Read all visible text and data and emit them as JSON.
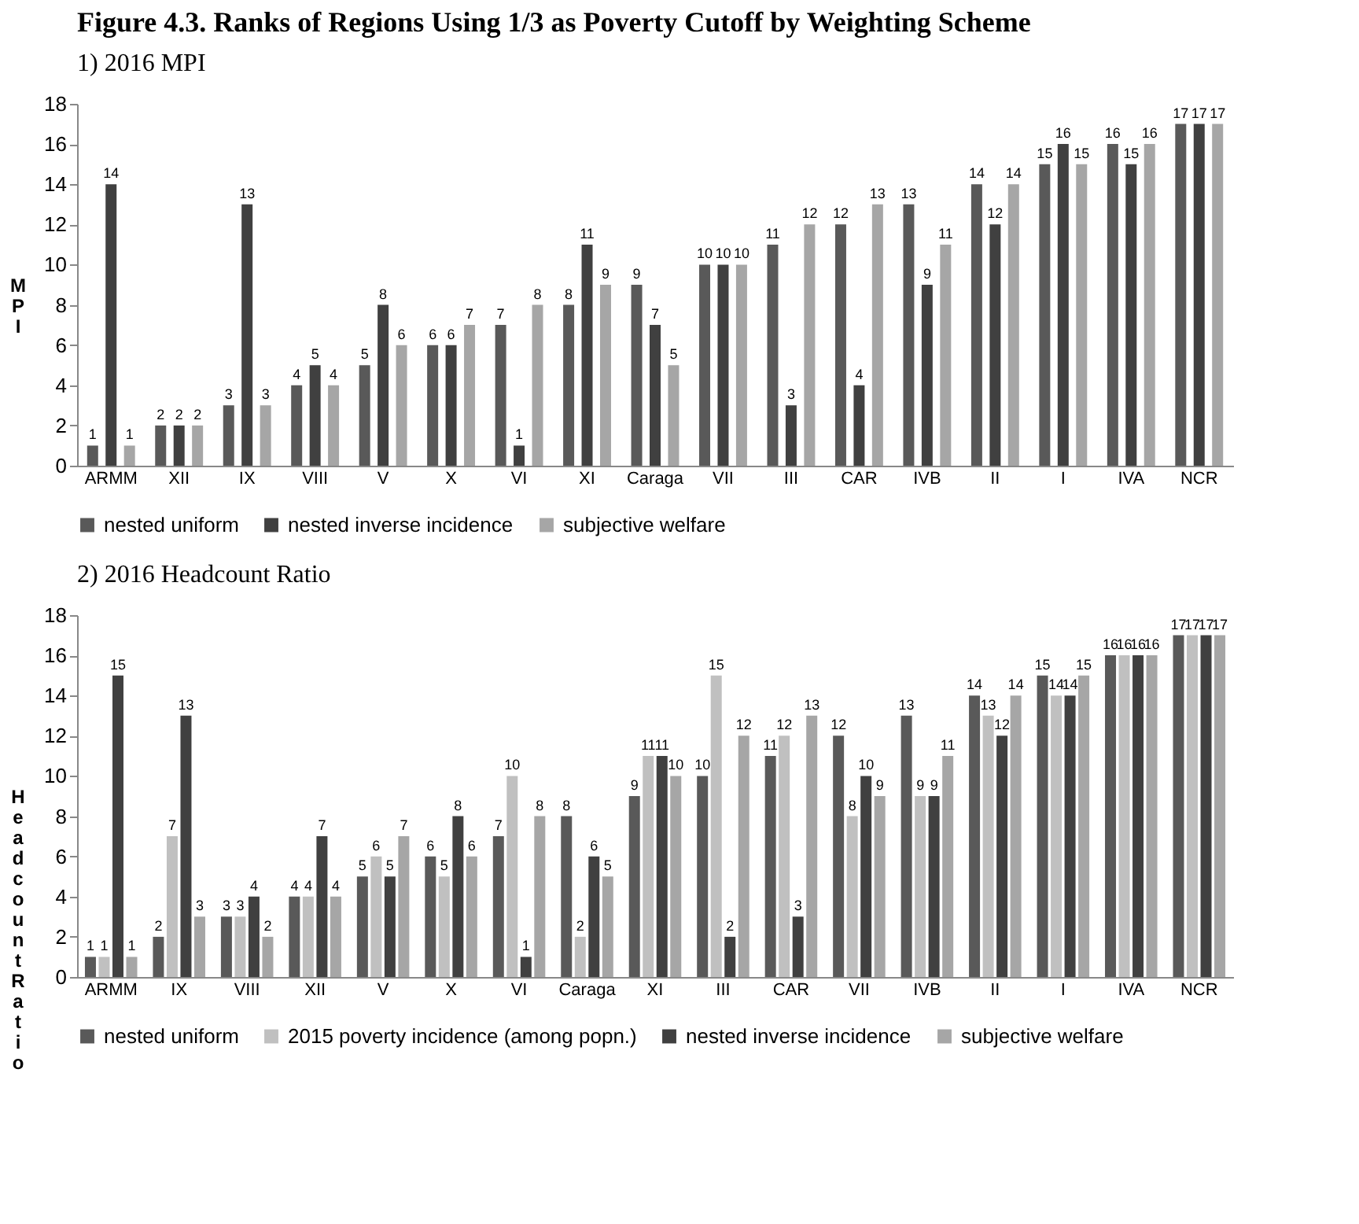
{
  "chart_data": [
    {
      "type": "bar",
      "title": "Figure 4.3.  Ranks of Regions Using 1/3 as Poverty Cutoff by Weighting Scheme",
      "subtitle": "1)    2016 MPI",
      "ylabel": "MPI",
      "categories": [
        "ARMM",
        "XII",
        "IX",
        "VIII",
        "V",
        "X",
        "VI",
        "XI",
        "Caraga",
        "VII",
        "III",
        "CAR",
        "IVB",
        "II",
        "I",
        "IVA",
        "NCR"
      ],
      "series": [
        {
          "name": "nested uniform",
          "color": "#595959",
          "values": [
            1,
            2,
            3,
            4,
            5,
            6,
            7,
            8,
            9,
            10,
            11,
            12,
            13,
            14,
            15,
            16,
            17
          ]
        },
        {
          "name": "nested inverse incidence",
          "color": "#404040",
          "values": [
            14,
            2,
            13,
            5,
            8,
            6,
            1,
            11,
            7,
            10,
            3,
            4,
            9,
            12,
            16,
            15,
            17
          ]
        },
        {
          "name": "subjective welfare",
          "color": "#a6a6a6",
          "values": [
            1,
            2,
            3,
            4,
            6,
            7,
            8,
            9,
            5,
            10,
            12,
            13,
            11,
            14,
            15,
            16,
            17
          ]
        }
      ],
      "ylim": [
        0,
        18
      ],
      "yticks": [
        0,
        2,
        4,
        6,
        8,
        10,
        12,
        14,
        16,
        18
      ],
      "grid": false,
      "legend": "bottom",
      "data_labels": true
    },
    {
      "type": "bar",
      "title": "2)    2016 Headcount Ratio",
      "ylabel": "Headcount Ratio",
      "categories": [
        "ARMM",
        "IX",
        "VIII",
        "XII",
        "V",
        "X",
        "VI",
        "Caraga",
        "XI",
        "III",
        "CAR",
        "VII",
        "IVB",
        "II",
        "I",
        "IVA",
        "NCR"
      ],
      "series": [
        {
          "name": "nested uniform",
          "color": "#595959",
          "values": [
            1,
            2,
            3,
            4,
            5,
            6,
            7,
            8,
            9,
            10,
            11,
            12,
            13,
            14,
            15,
            16,
            17
          ]
        },
        {
          "name": "2015 poverty incidence (among popn.)",
          "color": "#c0c0c0",
          "values": [
            1,
            7,
            3,
            4,
            6,
            5,
            10,
            2,
            11,
            15,
            12,
            8,
            9,
            13,
            14,
            16,
            17
          ]
        },
        {
          "name": "nested inverse incidence",
          "color": "#404040",
          "values": [
            15,
            13,
            4,
            7,
            5,
            8,
            1,
            6,
            11,
            2,
            3,
            10,
            9,
            12,
            14,
            16,
            17
          ]
        },
        {
          "name": "subjective welfare",
          "color": "#a6a6a6",
          "values": [
            1,
            3,
            2,
            4,
            7,
            6,
            8,
            5,
            10,
            12,
            13,
            9,
            11,
            14,
            15,
            16,
            17
          ]
        }
      ],
      "ylim": [
        0,
        18
      ],
      "yticks": [
        0,
        2,
        4,
        6,
        8,
        10,
        12,
        14,
        16,
        18
      ],
      "grid": false,
      "legend": "bottom",
      "data_labels": true
    }
  ]
}
